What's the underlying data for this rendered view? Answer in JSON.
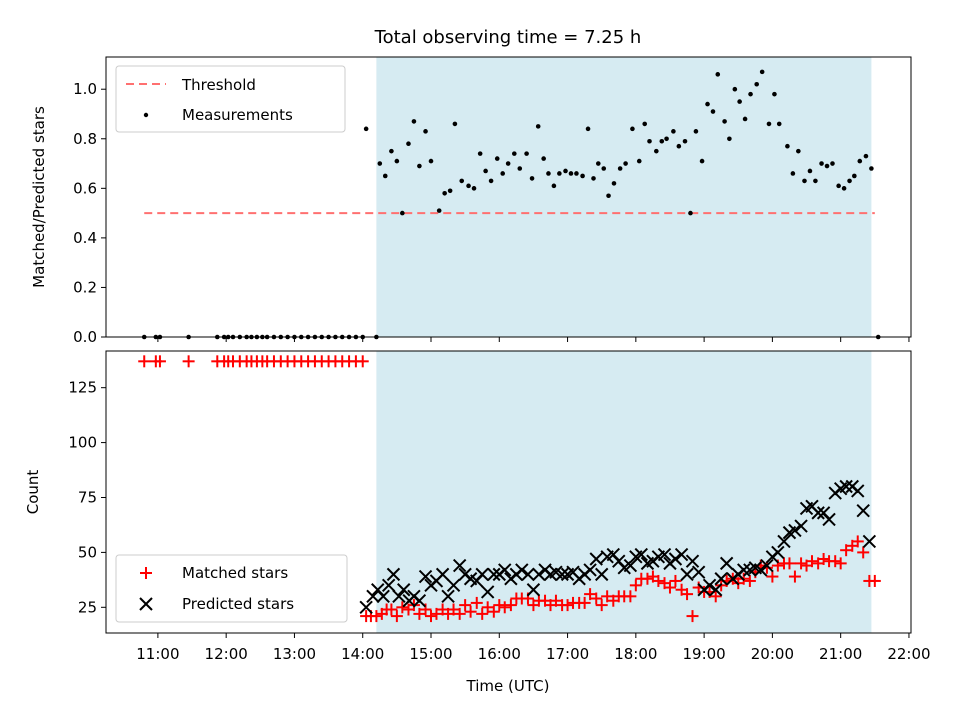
{
  "chart_data": [
    {
      "type": "scatter",
      "title": "Total observing time = 7.25 h",
      "ylabel": "Matched/Predicted stars",
      "xlim": [
        10.24,
        22.03
      ],
      "ylim": [
        0,
        1.13
      ],
      "yticks": [
        0.0,
        0.2,
        0.4,
        0.6,
        0.8,
        1.0
      ],
      "ytick_labels": [
        "0.0",
        "0.2",
        "0.4",
        "0.6",
        "0.8",
        "1.0"
      ],
      "shaded_span": [
        14.2,
        21.45
      ],
      "threshold": {
        "name": "Threshold",
        "value": 0.5,
        "x_range": [
          10.8,
          21.5
        ],
        "color": "#ff7070"
      },
      "legend": [
        "Threshold",
        "Measurements"
      ],
      "legend_loc": "upper left",
      "series": [
        {
          "name": "Measurements",
          "color": "#000000",
          "x": [
            10.8,
            10.97,
            11.03,
            11.45,
            11.87,
            11.97,
            12.03,
            12.1,
            12.2,
            12.3,
            12.37,
            12.45,
            12.53,
            12.6,
            12.7,
            12.8,
            12.9,
            13.0,
            13.1,
            13.2,
            13.3,
            13.4,
            13.5,
            13.6,
            13.7,
            13.8,
            13.9,
            14.0,
            14.05,
            14.2,
            14.25,
            14.33,
            14.42,
            14.5,
            14.58,
            14.67,
            14.75,
            14.83,
            14.92,
            15.0,
            15.12,
            15.2,
            15.28,
            15.35,
            15.45,
            15.55,
            15.63,
            15.72,
            15.8,
            15.88,
            15.97,
            16.05,
            16.13,
            16.22,
            16.3,
            16.4,
            16.48,
            16.57,
            16.65,
            16.72,
            16.8,
            16.88,
            16.97,
            17.05,
            17.13,
            17.22,
            17.3,
            17.38,
            17.45,
            17.53,
            17.6,
            17.68,
            17.77,
            17.85,
            17.95,
            18.05,
            18.13,
            18.2,
            18.3,
            18.38,
            18.45,
            18.55,
            18.63,
            18.72,
            18.8,
            18.88,
            18.97,
            19.05,
            19.13,
            19.2,
            19.3,
            19.37,
            19.45,
            19.52,
            19.6,
            19.68,
            19.77,
            19.85,
            19.95,
            20.03,
            20.1,
            20.22,
            20.3,
            20.38,
            20.47,
            20.55,
            20.63,
            20.72,
            20.8,
            20.88,
            20.97,
            21.05,
            21.13,
            21.2,
            21.28,
            21.37,
            21.45,
            21.55
          ],
          "y": [
            0,
            0,
            0,
            0,
            0,
            0,
            0,
            0,
            0,
            0,
            0,
            0,
            0,
            0,
            0,
            0,
            0,
            0,
            0,
            0,
            0,
            0,
            0,
            0,
            0,
            0,
            0,
            0,
            0.84,
            0,
            0.7,
            0.65,
            0.75,
            0.71,
            0.5,
            0.78,
            0.87,
            0.69,
            0.83,
            0.71,
            0.51,
            0.58,
            0.59,
            0.86,
            0.63,
            0.61,
            0.6,
            0.74,
            0.67,
            0.63,
            0.72,
            0.66,
            0.7,
            0.74,
            0.68,
            0.74,
            0.64,
            0.85,
            0.72,
            0.66,
            0.61,
            0.66,
            0.67,
            0.66,
            0.66,
            0.65,
            0.84,
            0.64,
            0.7,
            0.68,
            0.57,
            0.62,
            0.68,
            0.7,
            0.84,
            0.71,
            0.86,
            0.79,
            0.75,
            0.79,
            0.8,
            0.83,
            0.77,
            0.79,
            0.5,
            0.83,
            0.71,
            0.94,
            0.91,
            1.06,
            0.87,
            0.8,
            1.0,
            0.95,
            0.88,
            0.98,
            1.02,
            1.07,
            0.86,
            0.98,
            0.86,
            0.77,
            0.66,
            0.75,
            0.63,
            0.67,
            0.63,
            0.7,
            0.69,
            0.7,
            0.61,
            0.6,
            0.63,
            0.65,
            0.71,
            0.73,
            0.68,
            0
          ]
        }
      ]
    },
    {
      "type": "scatter",
      "title": "",
      "xlabel": "Time (UTC)",
      "ylabel": "Count",
      "xlim": [
        10.24,
        22.03
      ],
      "ylim": [
        13.3,
        141.7
      ],
      "xticks": [
        11,
        12,
        13,
        14,
        15,
        16,
        17,
        18,
        19,
        20,
        21,
        22
      ],
      "xtick_labels": [
        "11:00",
        "12:00",
        "13:00",
        "14:00",
        "15:00",
        "16:00",
        "17:00",
        "18:00",
        "19:00",
        "20:00",
        "21:00",
        "22:00"
      ],
      "yticks": [
        25,
        50,
        75,
        100,
        125
      ],
      "ytick_labels": [
        "25",
        "50",
        "75",
        "100",
        "125"
      ],
      "shaded_span": [
        14.2,
        21.45
      ],
      "legend": [
        "Matched stars",
        "Predicted stars"
      ],
      "legend_loc": "lower left",
      "series": [
        {
          "name": "Matched stars",
          "marker": "plus",
          "color": "#ff0000",
          "x": [
            10.8,
            10.97,
            11.03,
            11.45,
            11.87,
            11.97,
            12.03,
            12.1,
            12.2,
            12.3,
            12.37,
            12.45,
            12.53,
            12.6,
            12.7,
            12.8,
            12.9,
            13.0,
            13.1,
            13.2,
            13.3,
            13.4,
            13.5,
            13.6,
            13.7,
            13.8,
            13.9,
            14.0,
            14.05,
            14.12,
            14.2,
            14.28,
            14.35,
            14.42,
            14.5,
            14.58,
            14.67,
            14.75,
            14.83,
            14.92,
            15.0,
            15.08,
            15.17,
            15.25,
            15.33,
            15.42,
            15.5,
            15.58,
            15.67,
            15.75,
            15.83,
            15.92,
            16.0,
            16.08,
            16.17,
            16.25,
            16.33,
            16.42,
            16.5,
            16.58,
            16.67,
            16.75,
            16.83,
            16.92,
            17.0,
            17.08,
            17.17,
            17.25,
            17.33,
            17.42,
            17.5,
            17.58,
            17.67,
            17.75,
            17.83,
            17.92,
            18.0,
            18.08,
            18.17,
            18.25,
            18.33,
            18.42,
            18.5,
            18.58,
            18.67,
            18.75,
            18.83,
            18.92,
            19.0,
            19.08,
            19.17,
            19.25,
            19.33,
            19.42,
            19.5,
            19.58,
            19.67,
            19.75,
            19.83,
            19.92,
            20.0,
            20.08,
            20.17,
            20.25,
            20.33,
            20.42,
            20.5,
            20.58,
            20.67,
            20.75,
            20.83,
            20.92,
            21.0,
            21.08,
            21.17,
            21.25,
            21.33,
            21.42,
            21.5
          ],
          "y": [
            137,
            137,
            137,
            137,
            137,
            137,
            137,
            137,
            137,
            137,
            137,
            137,
            137,
            137,
            137,
            137,
            137,
            137,
            137,
            137,
            137,
            137,
            137,
            137,
            137,
            137,
            137,
            137,
            21,
            21,
            21,
            22,
            24,
            24,
            21,
            25,
            24,
            26,
            22,
            24,
            21,
            22,
            24,
            22,
            24,
            22,
            26,
            23,
            27,
            22,
            25,
            23,
            26,
            25,
            26,
            29,
            29,
            29,
            26,
            28,
            28,
            26,
            28,
            26,
            26,
            27,
            27,
            27,
            31,
            29,
            26,
            30,
            28,
            30,
            30,
            30,
            35,
            38,
            38,
            39,
            37,
            36,
            34,
            37,
            33,
            31,
            21,
            34,
            32,
            32,
            30,
            35,
            37,
            38,
            36,
            38,
            37,
            41,
            44,
            43,
            39,
            44,
            45,
            45,
            39,
            45,
            44,
            46,
            45,
            47,
            46,
            46,
            45,
            51,
            53,
            55,
            50,
            37,
            37
          ]
        },
        {
          "name": "Predicted stars",
          "marker": "x",
          "color": "#000000",
          "x": [
            14.05,
            14.15,
            14.22,
            14.3,
            14.38,
            14.45,
            14.53,
            14.6,
            14.68,
            14.75,
            14.83,
            14.92,
            15.0,
            15.08,
            15.17,
            15.25,
            15.33,
            15.42,
            15.5,
            15.58,
            15.67,
            15.75,
            15.83,
            15.92,
            16.0,
            16.08,
            16.17,
            16.25,
            16.33,
            16.42,
            16.5,
            16.58,
            16.67,
            16.75,
            16.83,
            16.92,
            17.0,
            17.08,
            17.17,
            17.25,
            17.33,
            17.42,
            17.5,
            17.58,
            17.67,
            17.75,
            17.83,
            17.92,
            18.0,
            18.08,
            18.17,
            18.25,
            18.33,
            18.42,
            18.5,
            18.58,
            18.67,
            18.75,
            18.83,
            18.92,
            19.0,
            19.08,
            19.17,
            19.25,
            19.33,
            19.42,
            19.5,
            19.58,
            19.67,
            19.75,
            19.83,
            19.92,
            20.0,
            20.08,
            20.17,
            20.25,
            20.33,
            20.42,
            20.5,
            20.58,
            20.67,
            20.75,
            20.83,
            20.92,
            21.0,
            21.08,
            21.17,
            21.25,
            21.33,
            21.42
          ],
          "y": [
            25,
            30,
            33,
            30,
            35,
            40,
            30,
            33,
            28,
            30,
            28,
            39,
            35,
            37,
            40,
            30,
            35,
            44,
            40,
            38,
            37,
            40,
            32,
            40,
            40,
            42,
            38,
            40,
            42,
            40,
            33,
            40,
            42,
            40,
            41,
            40,
            40,
            41,
            38,
            40,
            42,
            47,
            40,
            48,
            49,
            46,
            43,
            44,
            48,
            49,
            45,
            46,
            48,
            49,
            45,
            47,
            49,
            40,
            46,
            41,
            33,
            35,
            33,
            38,
            45,
            38,
            40,
            42,
            42,
            43,
            42,
            44,
            48,
            50,
            55,
            59,
            60,
            62,
            70,
            71,
            68,
            68,
            65,
            77,
            79,
            80,
            80,
            78,
            69,
            55
          ]
        }
      ]
    }
  ]
}
